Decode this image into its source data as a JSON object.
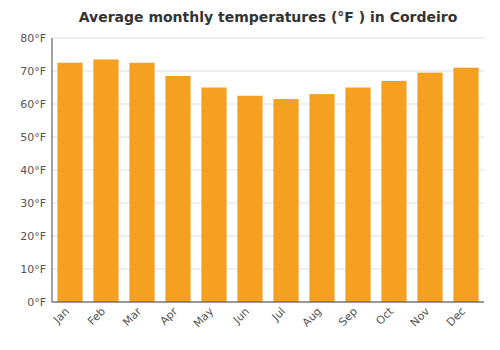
{
  "chart_data": {
    "type": "bar",
    "title": "Average monthly temperatures (°F ) in Cordeiro",
    "categories": [
      "Jan",
      "Feb",
      "Mar",
      "Apr",
      "May",
      "Jun",
      "Jul",
      "Aug",
      "Sep",
      "Oct",
      "Nov",
      "Dec"
    ],
    "values": [
      72.5,
      73.5,
      72.5,
      68.5,
      65.0,
      62.5,
      61.5,
      63.0,
      65.0,
      67.0,
      69.5,
      71.0
    ],
    "color": "#F5A020",
    "ylim": [
      0,
      80
    ],
    "yticks": [
      {
        "value": 0,
        "label": "0°F"
      },
      {
        "value": 10,
        "label": "10°F"
      },
      {
        "value": 20,
        "label": "20°F"
      },
      {
        "value": 30,
        "label": "30°F"
      },
      {
        "value": 40,
        "label": "40°F"
      },
      {
        "value": 50,
        "label": "50°F"
      },
      {
        "value": 60,
        "label": "60°F"
      },
      {
        "value": 70,
        "label": "70°F"
      },
      {
        "value": 80,
        "label": "80°F"
      }
    ],
    "grid": true
  }
}
